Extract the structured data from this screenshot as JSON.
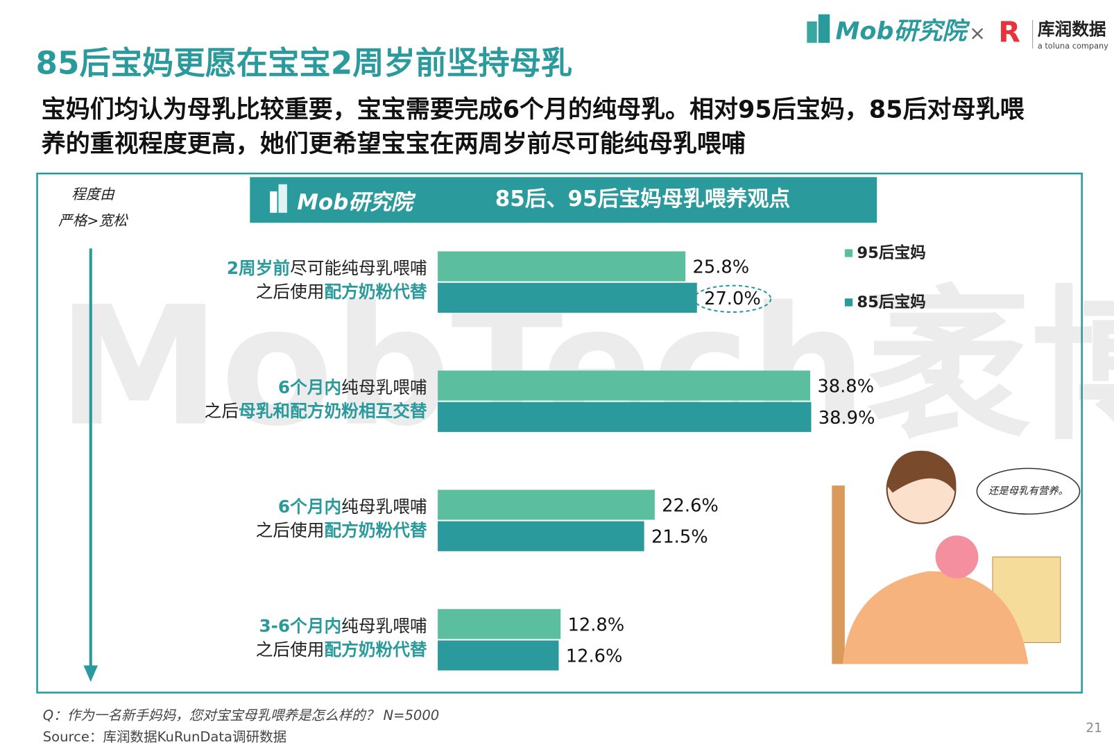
{
  "header": {
    "title": "85后宝妈更愿在宝宝2周岁前坚持母乳",
    "subtitle_lines": [
      "宝妈们均认为母乳比较重要，宝宝需要完成6个月的纯母乳。相对95后宝妈，85后对母乳喂",
      "养的重视程度更高，她们更希望宝宝在两周岁前尽可能纯母乳喂哺"
    ],
    "logo_mob": "Mob研究院",
    "logo_separator": "×",
    "logo_kurun": "库润数据",
    "logo_kurun_sub": "a toluna company"
  },
  "chart_data": {
    "type": "bar",
    "orientation": "horizontal",
    "brand": "Mob研究院",
    "title": "85后、95后宝妈母乳喂养观点",
    "axis_note": [
      "程度由",
      "严格>宽松"
    ],
    "watermark": "MobTech袤博",
    "categories": [
      {
        "lines": [
          [
            {
              "text": "2周岁前",
              "emphasis": true
            },
            {
              "text": "尽可能纯母乳喂哺",
              "emphasis": false
            }
          ],
          [
            {
              "text": "之后使用",
              "emphasis": false
            },
            {
              "text": "配方奶粉代替",
              "emphasis": true
            }
          ]
        ]
      },
      {
        "lines": [
          [
            {
              "text": "6个月内",
              "emphasis": true
            },
            {
              "text": "纯母乳喂哺",
              "emphasis": false
            }
          ],
          [
            {
              "text": "之后",
              "emphasis": false
            },
            {
              "text": "母乳和配方奶粉相互交替",
              "emphasis": true
            }
          ]
        ]
      },
      {
        "lines": [
          [
            {
              "text": "6个月内",
              "emphasis": true
            },
            {
              "text": "纯母乳喂哺",
              "emphasis": false
            }
          ],
          [
            {
              "text": "之后使用",
              "emphasis": false
            },
            {
              "text": "配方奶粉代替",
              "emphasis": true
            }
          ]
        ]
      },
      {
        "lines": [
          [
            {
              "text": "3-6个月内",
              "emphasis": true
            },
            {
              "text": "纯母乳喂哺",
              "emphasis": false
            }
          ],
          [
            {
              "text": "之后使用",
              "emphasis": false
            },
            {
              "text": "配方奶粉代替",
              "emphasis": true
            }
          ]
        ]
      }
    ],
    "series": [
      {
        "name": "95后宝妈",
        "color": "#5bbf9f",
        "values": [
          25.8,
          38.8,
          22.6,
          12.8
        ],
        "value_labels": [
          "25.8%",
          "38.8%",
          "22.6%",
          "12.8%"
        ]
      },
      {
        "name": "85后宝妈",
        "color": "#2a9a9c",
        "values": [
          27.0,
          38.9,
          21.5,
          12.6
        ],
        "value_labels": [
          "27.0%",
          "38.9%",
          "21.5%",
          "12.6%"
        ]
      }
    ],
    "circled_label": {
      "series": 1,
      "index": 0
    },
    "emphasis_color": "#2a9a9c",
    "illustration_caption": "还是母乳有营养。"
  },
  "footer": {
    "question": "Q：作为一名新手妈妈，您对宝宝母乳喂养是怎么样的？ N=5000",
    "source": "Source：库润数据KuRunData调研数据",
    "page_number": "21"
  }
}
